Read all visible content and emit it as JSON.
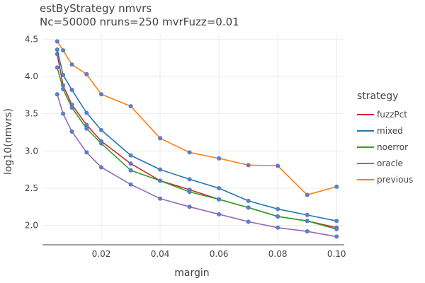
{
  "chart_data": {
    "type": "line",
    "title": "estByStrategy nmvrs",
    "subtitle": "Nc=50000 nruns=250 mvrFuzz=0.01",
    "xlabel": "margin",
    "ylabel": "log10(nmvrs)",
    "xlim": [
      0.0,
      0.1026
    ],
    "ylim": [
      1.74,
      4.57
    ],
    "xticks": [
      0.02,
      0.04,
      0.06,
      0.08,
      0.1
    ],
    "xtick_labels": [
      "0.02",
      "0.04",
      "0.06",
      "0.08",
      "0.10"
    ],
    "yticks": [
      2.0,
      2.5,
      3.0,
      3.5,
      4.0,
      4.5
    ],
    "ytick_labels": [
      "2.0",
      "2.5",
      "3.0",
      "3.5",
      "4.0",
      "4.5"
    ],
    "grid": true,
    "legend_title": "strategy",
    "legend_position": "right",
    "marker_color": "#5a7fd0",
    "series": [
      {
        "name": "fuzzPct",
        "color": "#d62728",
        "x": [
          0.005,
          0.007,
          0.01,
          0.015,
          0.02,
          0.03,
          0.04,
          0.05,
          0.06,
          0.07,
          0.08,
          0.09,
          0.1
        ],
        "y": [
          4.3,
          3.88,
          3.62,
          3.35,
          3.13,
          2.83,
          2.6,
          2.48,
          2.35,
          2.24,
          2.12,
          2.06,
          1.97
        ]
      },
      {
        "name": "mixed",
        "color": "#1f77b4",
        "x": [
          0.005,
          0.007,
          0.01,
          0.015,
          0.02,
          0.03,
          0.04,
          0.05,
          0.06,
          0.07,
          0.08,
          0.09,
          0.1
        ],
        "y": [
          4.36,
          4.02,
          3.82,
          3.51,
          3.28,
          2.94,
          2.75,
          2.62,
          2.5,
          2.33,
          2.22,
          2.14,
          2.06
        ]
      },
      {
        "name": "noerror",
        "color": "#2ca02c",
        "x": [
          0.005,
          0.007,
          0.01,
          0.015,
          0.02,
          0.03,
          0.04,
          0.05,
          0.06,
          0.07,
          0.08,
          0.09,
          0.1
        ],
        "y": [
          4.12,
          3.83,
          3.58,
          3.3,
          3.1,
          2.74,
          2.6,
          2.45,
          2.35,
          2.24,
          2.12,
          2.06,
          1.95
        ]
      },
      {
        "name": "oracle",
        "color": "#9467bd",
        "x": [
          0.005,
          0.007,
          0.01,
          0.015,
          0.02,
          0.03,
          0.04,
          0.05,
          0.06,
          0.07,
          0.08,
          0.09,
          0.1
        ],
        "y": [
          3.76,
          3.5,
          3.26,
          2.98,
          2.78,
          2.55,
          2.36,
          2.25,
          2.15,
          2.05,
          1.97,
          1.92,
          1.85
        ]
      },
      {
        "name": "previous",
        "color": "#ff7f0e",
        "x": [
          0.005,
          0.007,
          0.01,
          0.015,
          0.02,
          0.03,
          0.04,
          0.05,
          0.06,
          0.07,
          0.08,
          0.09,
          0.1
        ],
        "y": [
          4.47,
          4.35,
          4.16,
          4.03,
          3.76,
          3.6,
          3.17,
          2.98,
          2.9,
          2.81,
          2.8,
          2.41,
          2.52
        ]
      }
    ]
  }
}
